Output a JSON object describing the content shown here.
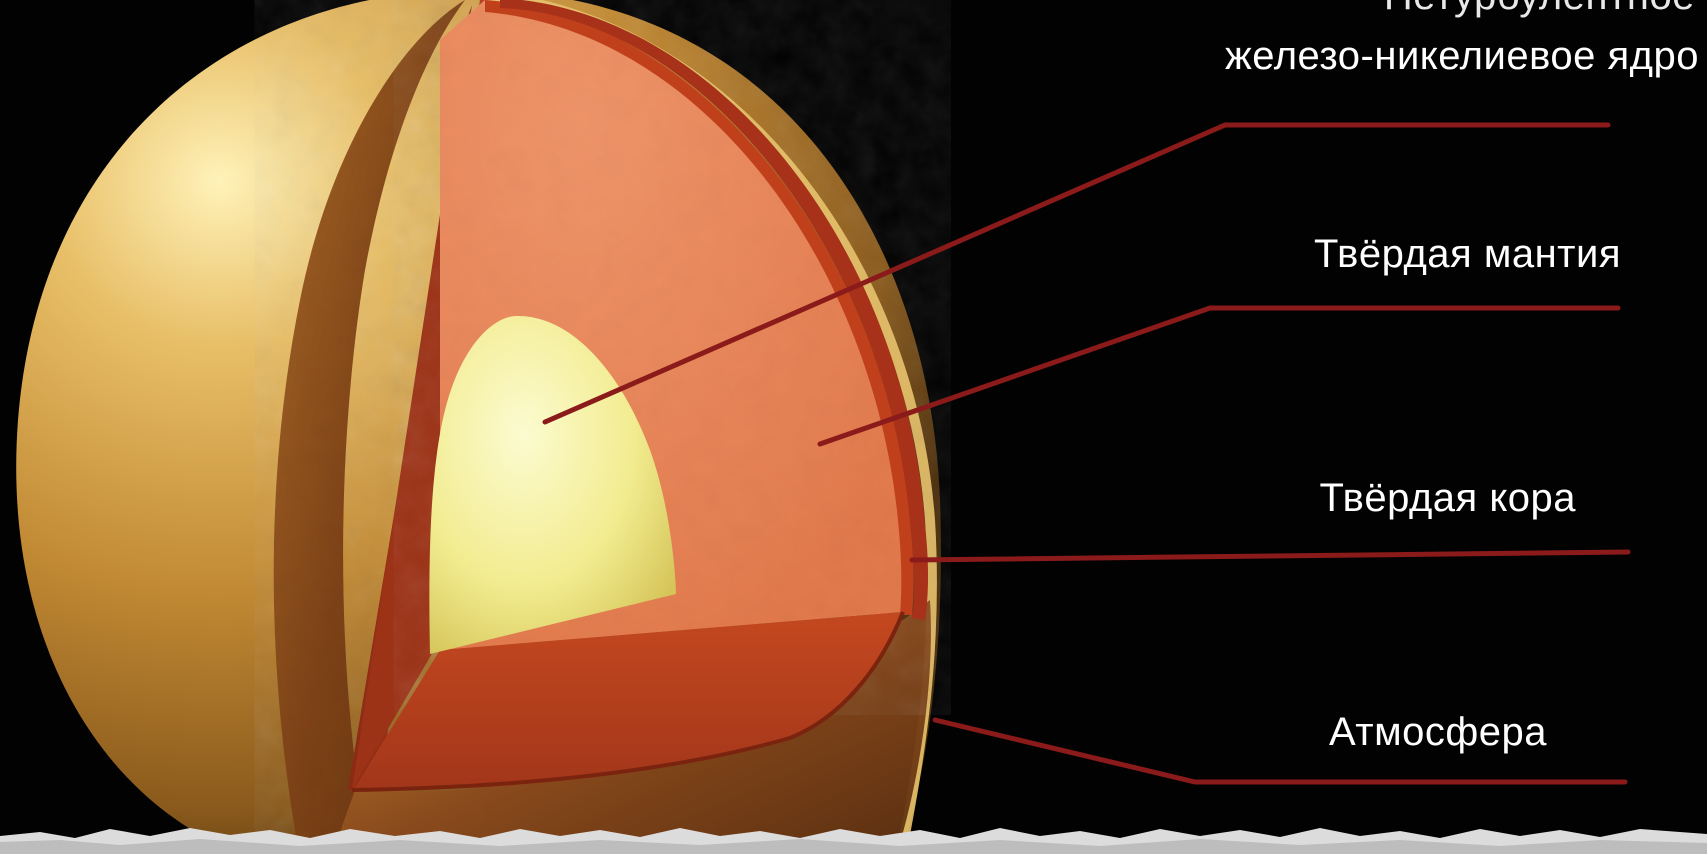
{
  "labels": {
    "core_line1": "Нетурбулентное",
    "core_line2": "железо-никелиевое ядро",
    "mantle": "Твёрдая мантия",
    "crust": "Твёрдая кора",
    "atmosphere": "Атмосфера"
  },
  "colors": {
    "background": "#020202",
    "leader_line": "#8b1a1a",
    "core": "#f4f09a",
    "mantle": "#ec8c5e",
    "crust": "#b8401e",
    "atmosphere": "#d9a441"
  }
}
